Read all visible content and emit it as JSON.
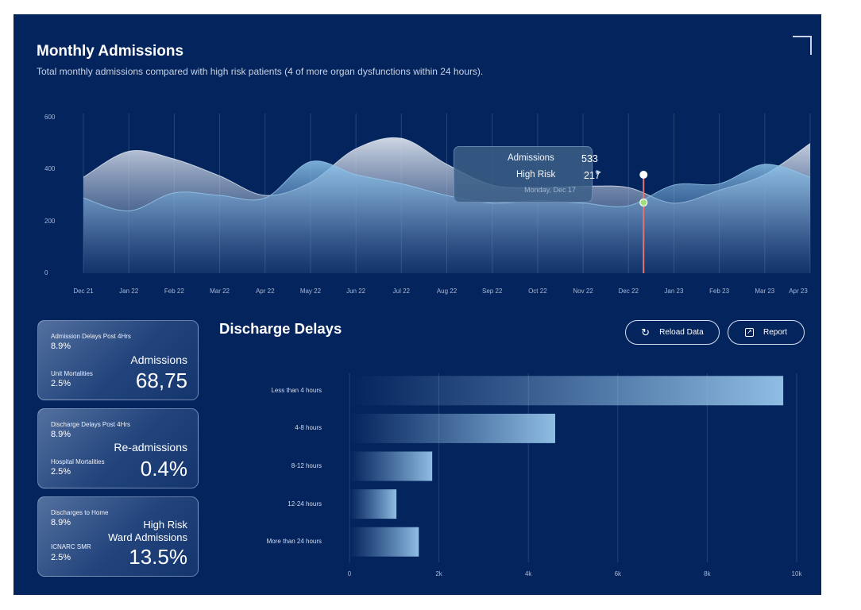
{
  "header": {
    "title": "Monthly Admissions",
    "subtitle": "Total monthly admissions compared with high risk patients (4 of more organ dysfunctions within 24 hours)."
  },
  "colors": {
    "background": "#03245c",
    "admissions_area": "#b8c3d6",
    "high_risk_area": "#7fb2dc",
    "cursor_line": "#e57373",
    "high_risk_dot": "#9fe07a"
  },
  "chart_data": [
    {
      "type": "area",
      "title": "Monthly Admissions",
      "x": [
        "Dec 21",
        "Jan 22",
        "Feb 22",
        "Mar 22",
        "Apr 22",
        "May 22",
        "Jun 22",
        "Jul 22",
        "Aug 22",
        "Sep 22",
        "Oct 22",
        "Nov 22",
        "Dec 22",
        "Jan 23",
        "Feb 23",
        "Mar 23",
        "Apr 23"
      ],
      "yticks": [
        "0",
        "200",
        "400",
        "600"
      ],
      "ylim": [
        0,
        600
      ],
      "series": [
        {
          "name": "Admissions",
          "values": [
            370,
            470,
            440,
            375,
            300,
            350,
            480,
            520,
            420,
            340,
            330,
            335,
            330,
            270,
            320,
            380,
            500
          ]
        },
        {
          "name": "High Risk",
          "values": [
            290,
            240,
            310,
            300,
            290,
            430,
            380,
            345,
            300,
            270,
            280,
            270,
            260,
            340,
            345,
            420,
            370
          ]
        }
      ],
      "tooltip": {
        "admissions_label": "Admissions",
        "admissions_value": "533",
        "high_risk_label": "High Risk",
        "high_risk_value": "217",
        "date": "Monday, Dec 17"
      }
    },
    {
      "type": "bar",
      "title": "Discharge Delays",
      "orientation": "horizontal",
      "categories": [
        "Less than 4 hours",
        "4-8 hours",
        "8-12 hours",
        "12-24 hours",
        "More than 24 hours"
      ],
      "values": [
        9700,
        4600,
        1850,
        1050,
        1550
      ],
      "xticks": [
        "0",
        "2k",
        "4k",
        "6k",
        "8k",
        "10k"
      ],
      "xlim": [
        0,
        10000
      ]
    }
  ],
  "cards": [
    {
      "label1": "Admission Delays Post 4Hrs",
      "value1": "8.9%",
      "label2": "Unit Mortalities",
      "value2": "2.5%",
      "name": "Admissions",
      "big": "68,75"
    },
    {
      "label1": "Discharge Delays Post 4Hrs",
      "value1": "8.9%",
      "label2": "Hospital Mortalities",
      "value2": "2.5%",
      "name": "Re-admissions",
      "big": "0.4%"
    },
    {
      "label1": "Discharges to Home",
      "value1": "8.9%",
      "label2": "ICNARC SMR",
      "value2": "2.5%",
      "name_line1": "High Risk",
      "name_line2": "Ward Admissions",
      "big": "13.5%"
    }
  ],
  "discharge": {
    "title": "Discharge Delays",
    "reload_label": "Reload Data",
    "report_label": "Report",
    "reload_icon": "reload-icon",
    "report_icon": "external-link-icon"
  }
}
